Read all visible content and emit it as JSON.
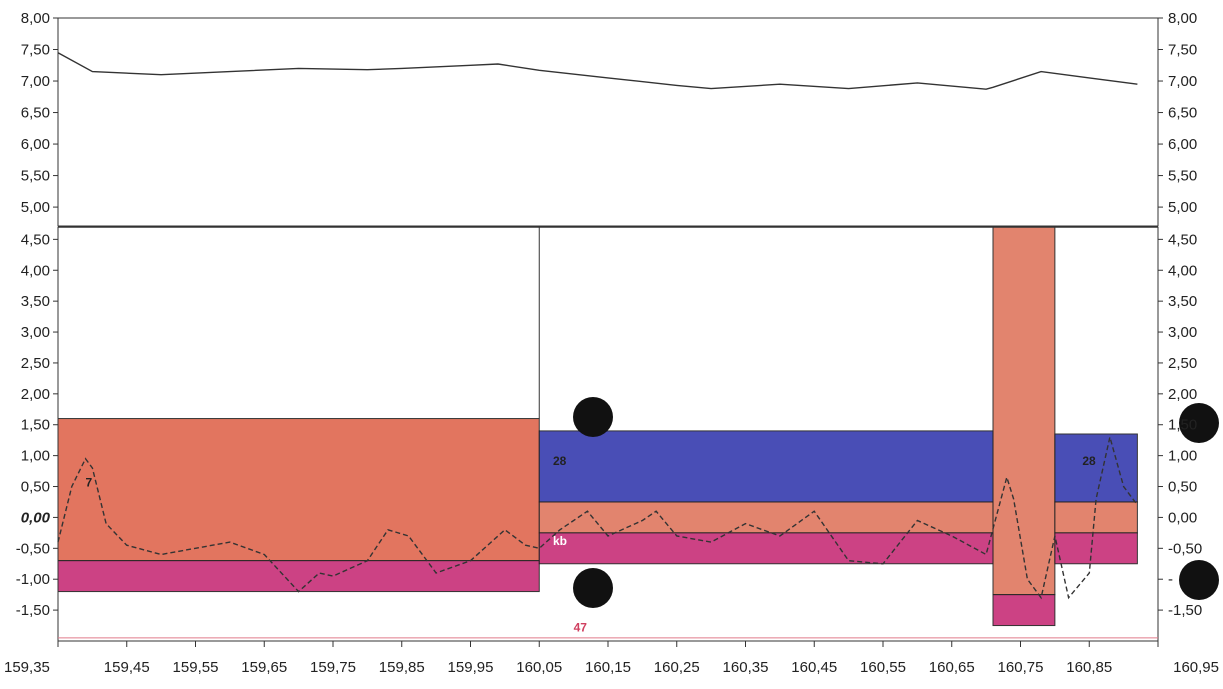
{
  "chart_data": {
    "type": "line",
    "x_ticks": [
      "159,35",
      "159,45",
      "159,55",
      "159,65",
      "159,75",
      "159,85",
      "159,95",
      "160,05",
      "160,15",
      "160,25",
      "160,35",
      "160,45",
      "160,55",
      "160,65",
      "160,75",
      "160,85",
      "160,95"
    ],
    "x_range": [
      159.35,
      160.95
    ],
    "panels": [
      {
        "name": "upper",
        "y_range": [
          4.7,
          8.0
        ],
        "y_ticks_left": [
          "8,00",
          "7,50",
          "7,00",
          "6,50",
          "6,00",
          "5,50",
          "5,00"
        ],
        "y_ticks_right": [
          "8,00",
          "7,50",
          "7,00",
          "6,50",
          "6,00",
          "5,50",
          "5,00"
        ],
        "series": [
          {
            "style": "solid",
            "x": [
              159.35,
              159.4,
              159.5,
              159.6,
              159.7,
              159.8,
              159.85,
              159.95,
              159.99,
              160.05,
              160.15,
              160.25,
              160.3,
              160.4,
              160.5,
              160.6,
              160.7,
              160.71,
              160.78,
              160.85,
              160.92
            ],
            "y": [
              7.45,
              7.15,
              7.1,
              7.15,
              7.2,
              7.18,
              7.2,
              7.25,
              7.27,
              7.17,
              7.05,
              6.93,
              6.88,
              6.95,
              6.88,
              6.97,
              6.87,
              6.9,
              7.15,
              7.05,
              6.95
            ]
          }
        ]
      },
      {
        "name": "lower",
        "y_range": [
          -2.0,
          4.7
        ],
        "y_ticks_left": [
          "4,50",
          "4,00",
          "3,50",
          "3,00",
          "2,50",
          "2,00",
          "1,50",
          "1,00",
          "0,50",
          "0,00",
          "-0,50",
          "-1,00",
          "-1,50"
        ],
        "y_ticks_right": [
          "4,50",
          "4,00",
          "3,50",
          "3,00",
          "2,50",
          "2,00",
          "1,50",
          "1,00",
          "0,50",
          "0,00",
          "-0,50",
          "-",
          "-1,50"
        ],
        "bands": [
          {
            "x0": 159.35,
            "x1": 160.05,
            "y0": -0.7,
            "y1": 1.6,
            "color": "#e06a52"
          },
          {
            "x0": 159.35,
            "x1": 160.05,
            "y0": -1.2,
            "y1": -0.7,
            "color": "#c8327a"
          },
          {
            "x0": 160.05,
            "x1": 160.71,
            "y0": 1.6,
            "y1": 1.57,
            "color": "#ffffff"
          },
          {
            "x0": 160.05,
            "x1": 160.71,
            "y0": 0.25,
            "y1": 1.4,
            "color": "#3a3fb0"
          },
          {
            "x0": 160.05,
            "x1": 160.71,
            "y0": -0.25,
            "y1": 0.25,
            "color": "#e07a62"
          },
          {
            "x0": 160.05,
            "x1": 160.71,
            "y0": -0.75,
            "y1": -0.25,
            "color": "#c8327a"
          },
          {
            "x0": 160.71,
            "x1": 160.8,
            "y0": -1.25,
            "y1": 4.7,
            "color": "#e07a62"
          },
          {
            "x0": 160.71,
            "x1": 160.8,
            "y0": -1.75,
            "y1": -1.25,
            "color": "#c8327a"
          },
          {
            "x0": 160.8,
            "x1": 160.92,
            "y0": 0.25,
            "y1": 1.35,
            "color": "#3a3fb0"
          },
          {
            "x0": 160.8,
            "x1": 160.92,
            "y0": -0.25,
            "y1": 0.25,
            "color": "#e07a62"
          },
          {
            "x0": 160.8,
            "x1": 160.92,
            "y0": -0.75,
            "y1": -0.25,
            "color": "#c8327a"
          }
        ],
        "labels": [
          {
            "text": "7",
            "x": 159.39,
            "y": 0.5,
            "color": "#222222"
          },
          {
            "text": "28",
            "x": 160.07,
            "y": 0.85,
            "color": "#222222"
          },
          {
            "text": "kb",
            "x": 160.07,
            "y": -0.45,
            "color": "#ffffff"
          },
          {
            "text": "28",
            "x": 160.84,
            "y": 0.85,
            "color": "#222222"
          },
          {
            "text": "47",
            "x": 160.1,
            "y": -1.85,
            "color": "#d04060"
          }
        ],
        "series": [
          {
            "style": "dashed",
            "x": [
              159.35,
              159.37,
              159.39,
              159.4,
              159.42,
              159.45,
              159.5,
              159.55,
              159.6,
              159.65,
              159.7,
              159.73,
              159.75,
              159.8,
              159.83,
              159.86,
              159.9,
              159.95,
              160.0,
              160.03,
              160.05,
              160.08,
              160.12,
              160.15,
              160.2,
              160.22,
              160.25,
              160.3,
              160.35,
              160.4,
              160.45,
              160.5,
              160.55,
              160.6,
              160.65,
              160.7,
              160.73,
              160.74,
              160.76,
              160.78,
              160.8,
              160.82,
              160.85,
              160.86,
              160.88,
              160.9,
              160.92
            ],
            "y": [
              -0.4,
              0.5,
              0.95,
              0.8,
              -0.1,
              -0.45,
              -0.6,
              -0.5,
              -0.4,
              -0.6,
              -1.2,
              -0.9,
              -0.95,
              -0.7,
              -0.2,
              -0.3,
              -0.9,
              -0.7,
              -0.2,
              -0.45,
              -0.5,
              -0.2,
              0.1,
              -0.3,
              -0.05,
              0.1,
              -0.3,
              -0.4,
              -0.1,
              -0.3,
              0.1,
              -0.7,
              -0.75,
              -0.05,
              -0.3,
              -0.6,
              0.65,
              0.3,
              -1.0,
              -1.3,
              -0.3,
              -1.3,
              -0.9,
              0.3,
              1.3,
              0.5,
              0.2
            ]
          }
        ]
      }
    ],
    "grid": false,
    "legend": "none"
  },
  "colors": {
    "axis": "#333333",
    "line": "#333333",
    "marker": "#111111"
  }
}
